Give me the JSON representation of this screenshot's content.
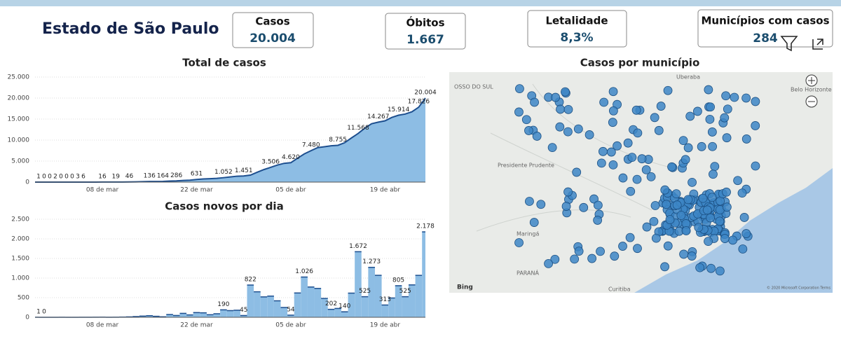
{
  "header": {
    "title": "Estado de São Paulo",
    "cards": [
      {
        "label": "Casos",
        "value": "20.004"
      },
      {
        "label": "Óbitos",
        "value": "1.667"
      },
      {
        "label": "Letalidade",
        "value": "8,3%"
      },
      {
        "label": "Municípios com casos",
        "value": "284"
      }
    ]
  },
  "chart_data": [
    {
      "type": "area",
      "title": "Total de casos",
      "color": "#8dbde4",
      "line_color": "#1d4f8f",
      "categories": [
        null,
        null,
        null,
        null,
        null,
        null,
        null,
        null,
        null,
        null,
        "08 de mar",
        null,
        null,
        null,
        null,
        null,
        null,
        null,
        null,
        null,
        null,
        null,
        null,
        null,
        "22 de mar",
        null,
        null,
        null,
        null,
        null,
        null,
        null,
        null,
        null,
        null,
        null,
        null,
        null,
        "05 de abr",
        null,
        null,
        null,
        null,
        null,
        null,
        null,
        null,
        null,
        null,
        null,
        null,
        null,
        "19 de abr",
        null,
        null,
        null,
        null,
        null,
        null
      ],
      "values": [
        1,
        0,
        0,
        2,
        0,
        0,
        0,
        3,
        6,
        10,
        16,
        17,
        19,
        30,
        46,
        65,
        100,
        136,
        152,
        164,
        240,
        286,
        396,
        459,
        631,
        745,
        810,
        898,
        1052,
        1223,
        1406,
        1451,
        1667,
        2339,
        2981,
        3506,
        4048,
        4466,
        4620,
        5682,
        6708,
        7480,
        8216,
        8419,
        8644,
        8755,
        9371,
        10498,
        11568,
        12841,
        13894,
        14267,
        14580,
        15385,
        15914,
        16200,
        16740,
        17826,
        20004
      ],
      "value_labels": [
        "1",
        "0",
        "0",
        "2",
        "0",
        "0",
        "0",
        "3",
        "6",
        null,
        "16",
        null,
        "19",
        null,
        "46",
        null,
        null,
        "136",
        null,
        "164",
        null,
        "286",
        null,
        null,
        "631",
        null,
        null,
        null,
        "1.052",
        null,
        null,
        "1.451",
        null,
        null,
        null,
        "3.506",
        null,
        null,
        "4.620",
        null,
        null,
        "7.480",
        null,
        null,
        null,
        "8.755",
        null,
        null,
        "11.568",
        null,
        null,
        "14.267",
        null,
        null,
        "15.914",
        null,
        null,
        "17.826",
        "20.004"
      ],
      "ylim": [
        0,
        25000
      ],
      "yticks": [
        0,
        {
          "value": 5000,
          "label": "5.000"
        },
        {
          "value": 10000,
          "label": "10.000"
        },
        {
          "value": 15000,
          "label": "15.000"
        },
        {
          "value": 20000,
          "label": "20.000"
        },
        {
          "value": 25000,
          "label": "25.000"
        }
      ],
      "grid": true
    },
    {
      "type": "step",
      "title": "Casos novos por dia",
      "color": "#8dbde4",
      "line_color": "#1d4f8f",
      "categories": [
        null,
        null,
        null,
        null,
        null,
        null,
        null,
        null,
        null,
        null,
        "08 de mar",
        null,
        null,
        null,
        null,
        null,
        null,
        null,
        null,
        null,
        null,
        null,
        null,
        null,
        "22 de mar",
        null,
        null,
        null,
        null,
        null,
        null,
        null,
        null,
        null,
        null,
        null,
        null,
        null,
        "05 de abr",
        null,
        null,
        null,
        null,
        null,
        null,
        null,
        null,
        null,
        null,
        null,
        null,
        null,
        "19 de abr",
        null,
        null,
        null,
        null,
        null,
        null
      ],
      "values": [
        1,
        0,
        0,
        0,
        1,
        0,
        0,
        1,
        1,
        2,
        3,
        1,
        2,
        5,
        10,
        18,
        30,
        40,
        25,
        12,
        70,
        46,
        100,
        60,
        120,
        114,
        65,
        90,
        190,
        170,
        180,
        45,
        822,
        650,
        520,
        540,
        420,
        250,
        54,
        620,
        1026,
        772,
        736,
        480,
        202,
        225,
        140,
        616,
        1672,
        525,
        1273,
        1070,
        313,
        492,
        805,
        525,
        826,
        1069,
        2178
      ],
      "value_labels": [
        "1",
        "0",
        null,
        null,
        null,
        null,
        null,
        null,
        null,
        null,
        null,
        null,
        null,
        null,
        null,
        null,
        null,
        null,
        null,
        null,
        null,
        null,
        null,
        null,
        null,
        null,
        null,
        null,
        "190",
        null,
        null,
        "45",
        "822",
        null,
        null,
        null,
        null,
        null,
        "54",
        null,
        "1.026",
        null,
        null,
        null,
        "202",
        null,
        "140",
        null,
        "1.672",
        "525",
        "1.273",
        null,
        "313",
        null,
        "805",
        "525",
        null,
        null,
        "2.178"
      ],
      "ylim": [
        0,
        2500
      ],
      "yticks": [
        0,
        500,
        {
          "value": 1000,
          "label": "1.000"
        },
        {
          "value": 1500,
          "label": "1.500"
        },
        {
          "value": 2000,
          "label": "2.000"
        },
        {
          "value": 2500,
          "label": "2.500"
        }
      ],
      "grid": true
    }
  ],
  "map": {
    "title": "Casos por município",
    "labels": [
      "OSSO DO SUL",
      "Presidente Prudente",
      "Maringá",
      "PARANÁ",
      "Curitiba",
      "Uberaba",
      "Belo Horizonte",
      "Bing",
      "© 2020 Microsoft Corporation Terms"
    ]
  }
}
